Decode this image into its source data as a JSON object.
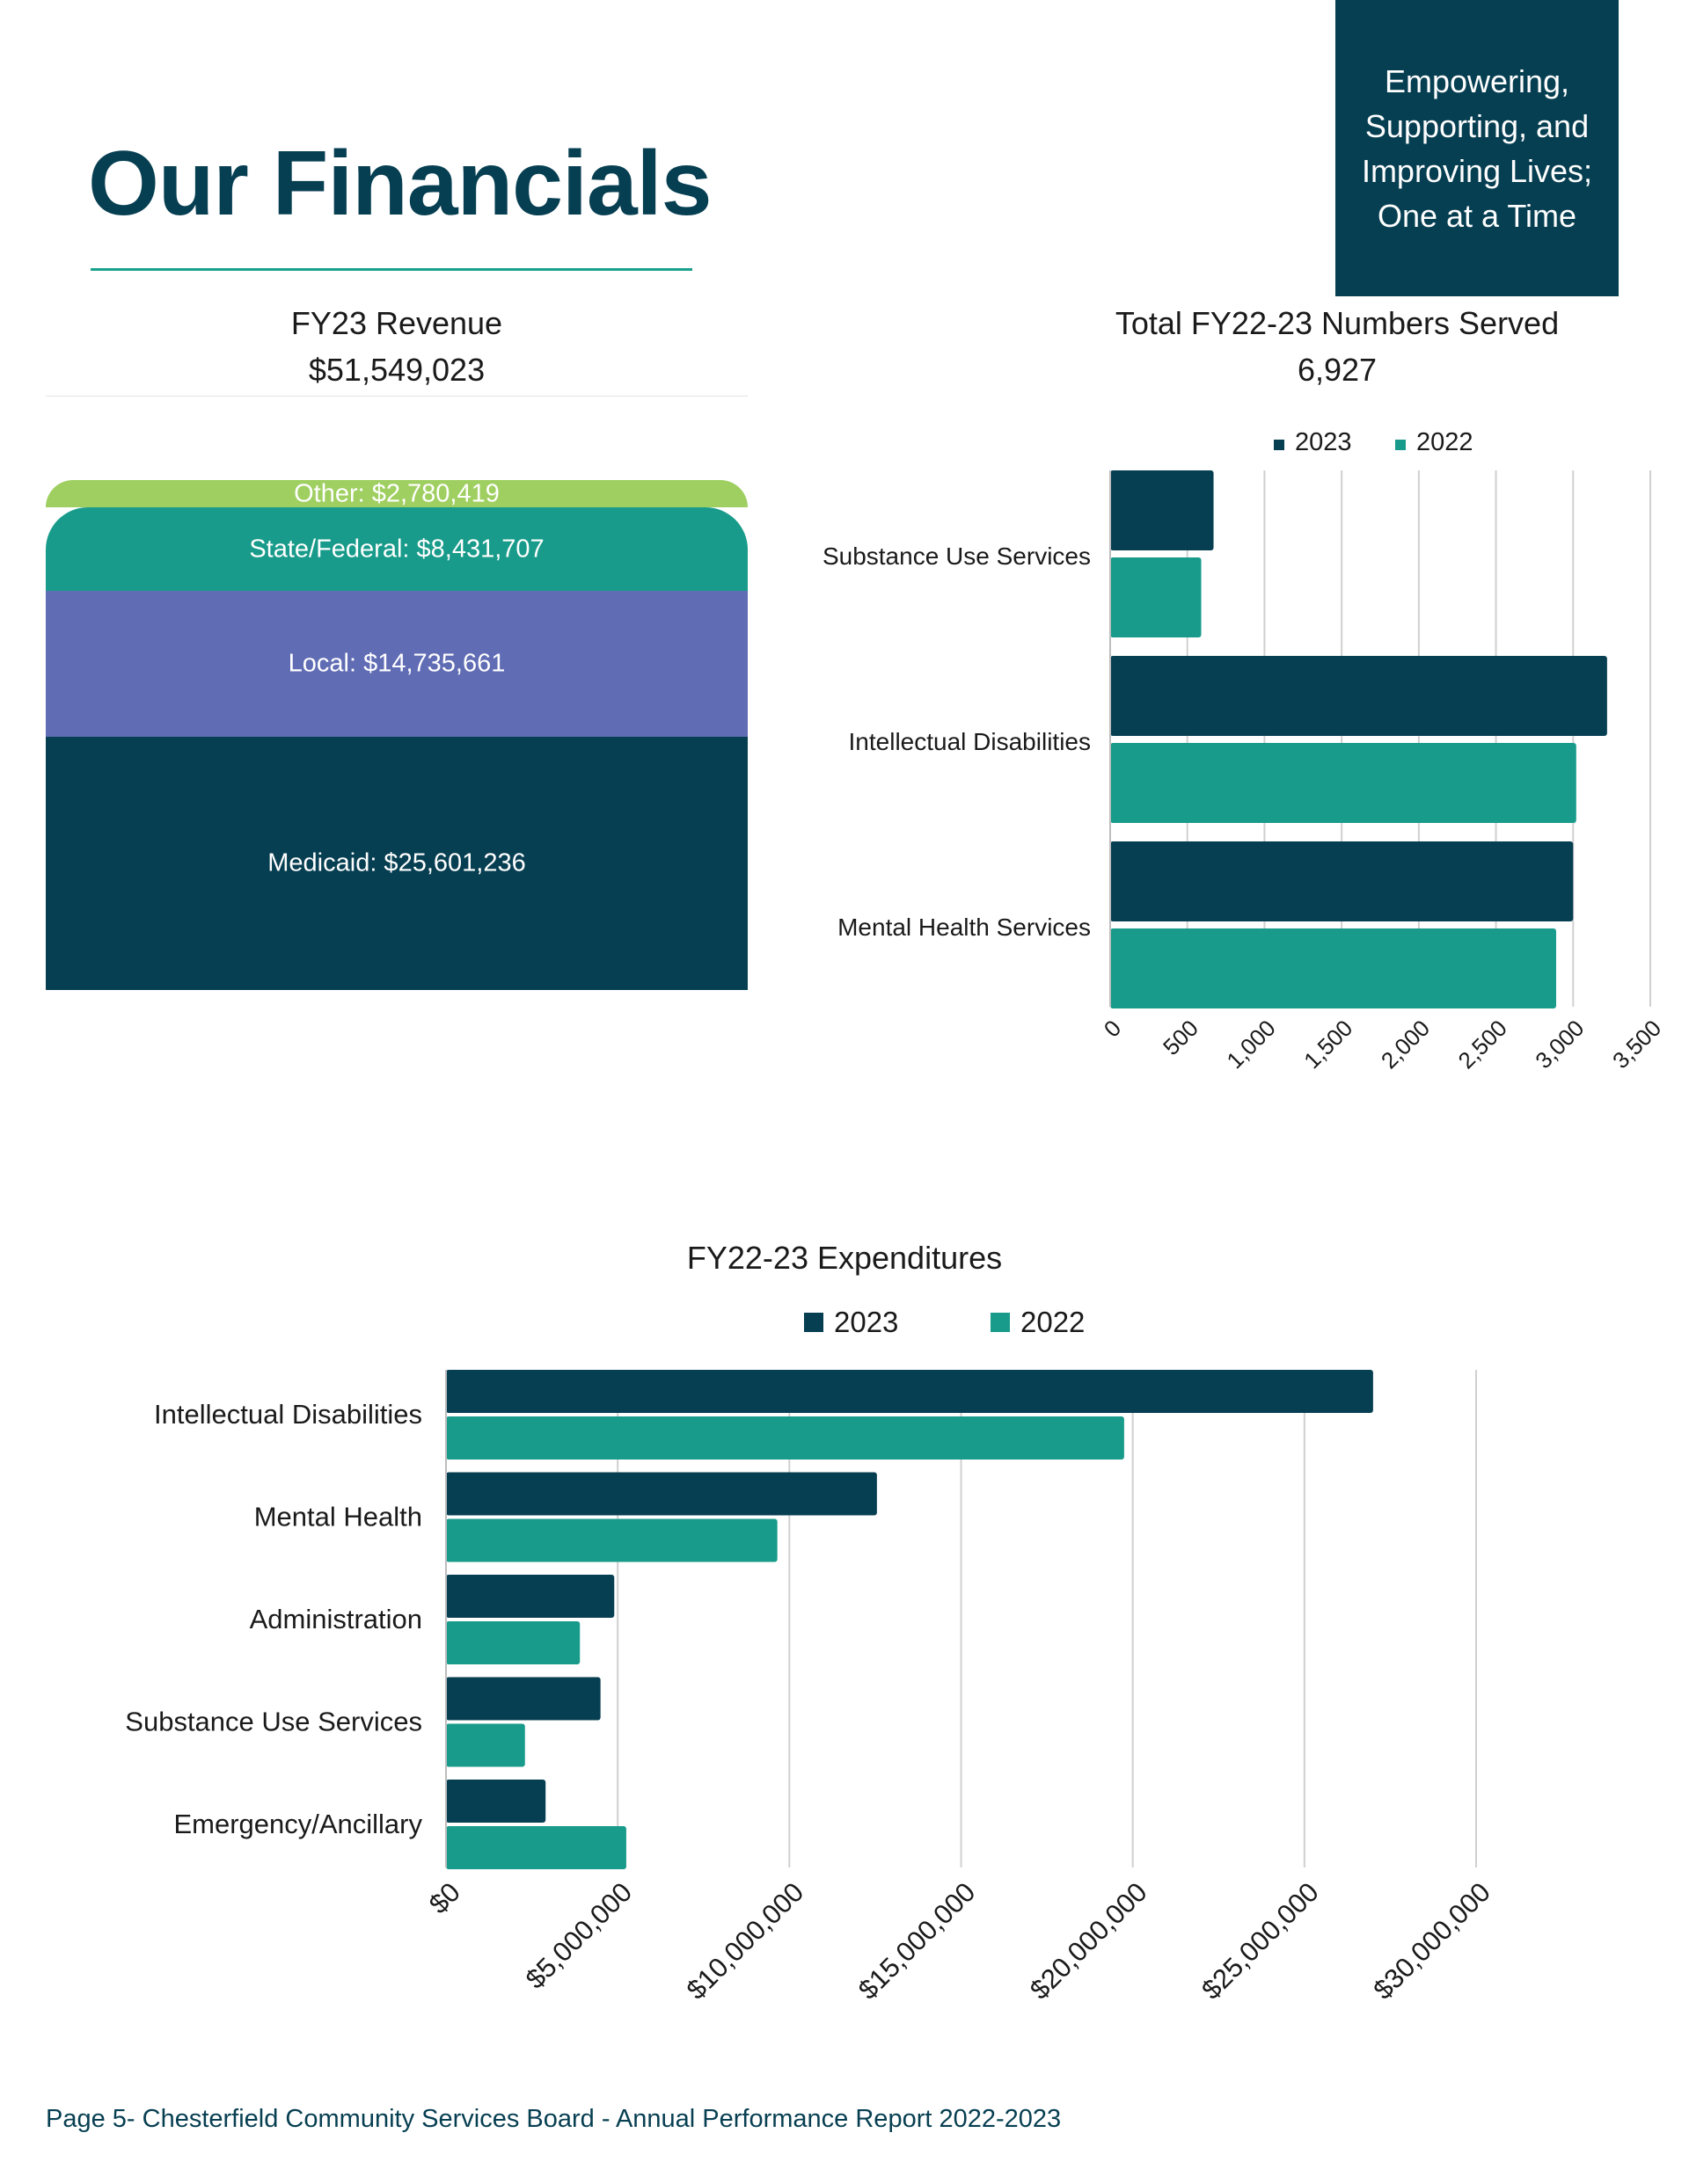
{
  "page": {
    "title": "Our Financials",
    "tagline": [
      "Empowering,",
      "Supporting, and",
      "Improving Lives;",
      "One at a Time"
    ],
    "footer": "Page 5- Chesterfield Community Services Board - Annual Performance Report 2022-2023"
  },
  "colors": {
    "navy": "#073f52",
    "teal": "#189b8a",
    "lavender": "#606cb4",
    "lime": "#9fcf60"
  },
  "chart_data": [
    {
      "type": "stacked-bar",
      "title": "FY23 Revenue",
      "subtitle": "$51,549,023",
      "segments": [
        {
          "label": "Other: $2,780,419",
          "value": 2780419,
          "color": "#9fcf60"
        },
        {
          "label": "State/Federal: $8,431,707",
          "value": 8431707,
          "color": "#189b8a"
        },
        {
          "label": "Local: $14,735,661",
          "value": 14735661,
          "color": "#606cb4"
        },
        {
          "label": "Medicaid: $25,601,236",
          "value": 25601236,
          "color": "#073f52"
        }
      ]
    },
    {
      "type": "bar",
      "orientation": "horizontal",
      "title": "Total FY22-23 Numbers Served",
      "subtitle": "6,927",
      "categories": [
        "Substance Use Services",
        "Intellectual Disabilities",
        "Mental Health Services"
      ],
      "series": [
        {
          "name": "2023",
          "values": [
            670,
            3220,
            3000
          ],
          "color": "#073f52"
        },
        {
          "name": "2022",
          "values": [
            590,
            3020,
            2890
          ],
          "color": "#189b8a"
        }
      ],
      "xlim": [
        0,
        3500
      ],
      "xticks": [
        "0",
        "500",
        "1,000",
        "1,500",
        "2,000",
        "2,500",
        "3,000",
        "3,500"
      ],
      "legend": "top",
      "grid": true
    },
    {
      "type": "bar",
      "orientation": "horizontal",
      "title": "FY22-23 Expenditures",
      "categories": [
        "Intellectual Disabilities",
        "Mental Health",
        "Administration",
        "Substance Use Services",
        "Emergency/Ancillary"
      ],
      "series": [
        {
          "name": "2023",
          "values": [
            27000000,
            12550000,
            4900000,
            4500000,
            2900000
          ],
          "color": "#073f52"
        },
        {
          "name": "2022",
          "values": [
            19750000,
            9650000,
            3900000,
            2300000,
            5250000
          ],
          "color": "#189b8a"
        }
      ],
      "xlim": [
        0,
        30000000
      ],
      "xticks": [
        "$0",
        "$5,000,000",
        "$10,000,000",
        "$15,000,000",
        "$20,000,000",
        "$25,000,000",
        "$30,000,000"
      ],
      "legend": "top",
      "grid": true
    }
  ]
}
